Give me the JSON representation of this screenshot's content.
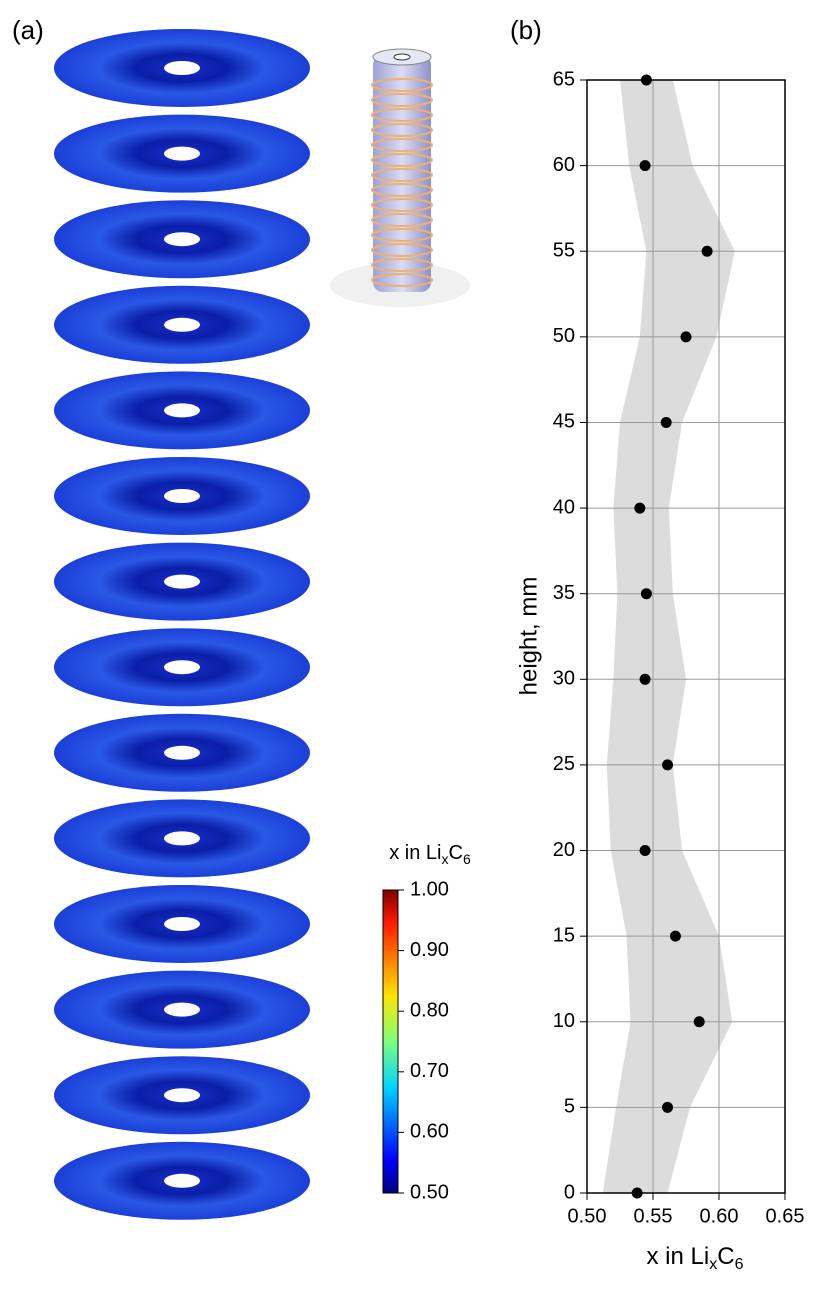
{
  "panel_labels": [
    "(a)",
    "(b)"
  ],
  "colorbar": {
    "title": [
      "x in Li",
      "x",
      "C",
      "6"
    ],
    "lim": [
      0.5,
      1.0
    ],
    "ticks": [
      {
        "value": 0.5,
        "label": "0.50"
      },
      {
        "value": 0.6,
        "label": "0.60"
      },
      {
        "value": 0.7,
        "label": "0.70"
      },
      {
        "value": 0.8,
        "label": "0.80"
      },
      {
        "value": 0.9,
        "label": "0.90"
      },
      {
        "value": 1.0,
        "label": "1.00"
      }
    ]
  },
  "chart_data": {
    "type": "scatter",
    "xlabel": [
      "x in Li",
      "x",
      "C",
      "6"
    ],
    "ylabel": "height, mm",
    "x": [
      0.538,
      0.561,
      0.585,
      0.567,
      0.544,
      0.561,
      0.544,
      0.545,
      0.54,
      0.56,
      0.575,
      0.591,
      0.544,
      0.545
    ],
    "y": [
      0,
      5,
      10,
      15,
      20,
      25,
      30,
      35,
      40,
      45,
      50,
      55,
      60,
      65
    ],
    "color": "#000000",
    "band": {
      "color": "#dcdcdc",
      "y": [
        0,
        5,
        10,
        15,
        20,
        25,
        30,
        35,
        40,
        45,
        50,
        55,
        60,
        65
      ],
      "lower": [
        0.512,
        0.522,
        0.533,
        0.53,
        0.518,
        0.515,
        0.52,
        0.523,
        0.52,
        0.525,
        0.54,
        0.545,
        0.532,
        0.525
      ],
      "upper": [
        0.561,
        0.578,
        0.61,
        0.6,
        0.572,
        0.565,
        0.575,
        0.565,
        0.562,
        0.572,
        0.598,
        0.612,
        0.58,
        0.565
      ]
    },
    "xlim": [
      0.5,
      0.65
    ],
    "xticks": [
      {
        "value": 0.5,
        "label": "0.50"
      },
      {
        "value": 0.55,
        "label": "0.55"
      },
      {
        "value": 0.6,
        "label": "0.60"
      },
      {
        "value": 0.65,
        "label": "0.65"
      }
    ],
    "ylim": [
      0,
      65
    ],
    "yticks": [
      0,
      5,
      10,
      15,
      20,
      25,
      30,
      35,
      40,
      45,
      50,
      55,
      60,
      65
    ],
    "grid": true
  }
}
